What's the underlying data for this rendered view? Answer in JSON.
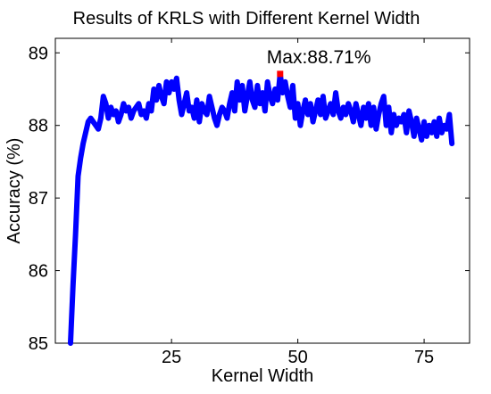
{
  "chart_data": {
    "type": "line",
    "title": "Results of KRLS with Different Kernel Width",
    "xlabel": "Kernel Width",
    "ylabel": "Accuracy (%)",
    "xlim": [
      2,
      84
    ],
    "ylim": [
      85,
      89.2
    ],
    "xticks": [
      25,
      50,
      75
    ],
    "xtick_labels": [
      "25",
      "50",
      "75"
    ],
    "yticks": [
      85,
      86,
      87,
      88,
      89
    ],
    "ytick_labels": [
      "85",
      "86",
      "87",
      "88",
      "89"
    ],
    "grid": false,
    "series_color": "#0000ff",
    "annotation": {
      "text": "Max:88.71%",
      "x": 46.5,
      "y": 88.71,
      "marker_color": "#ff0000"
    },
    "series": [
      {
        "x": [
          5,
          5.5,
          6,
          6.5,
          7,
          7.5,
          8,
          8.5,
          9,
          9.5,
          10,
          10.5,
          11,
          11.5,
          12,
          12.5,
          13,
          13.5,
          14,
          14.5,
          15,
          15.5,
          16,
          16.5,
          17,
          17.5,
          18,
          18.5,
          19,
          19.5,
          20,
          20.5,
          21,
          21.5,
          22,
          22.5,
          23,
          23.5,
          24,
          24.5,
          25,
          25.5,
          26,
          26.5,
          27,
          27.5,
          28,
          28.5,
          29,
          29.5,
          30,
          30.5,
          31,
          31.5,
          32,
          32.5,
          33,
          33.5,
          34,
          34.5,
          35,
          35.5,
          36,
          36.5,
          37,
          37.5,
          38,
          38.5,
          39,
          39.5,
          40,
          40.5,
          41,
          41.5,
          42,
          42.5,
          43,
          43.5,
          44,
          44.5,
          45,
          45.5,
          46,
          46.5,
          47,
          47.5,
          48,
          48.5,
          49,
          49.5,
          50,
          50.5,
          51,
          51.5,
          52,
          52.5,
          53,
          53.5,
          54,
          54.5,
          55,
          55.5,
          56,
          56.5,
          57,
          57.5,
          58,
          58.5,
          59,
          59.5,
          60,
          60.5,
          61,
          61.5,
          62,
          62.5,
          63,
          63.5,
          64,
          64.5,
          65,
          65.5,
          66,
          66.5,
          67,
          67.5,
          68,
          68.5,
          69,
          69.5,
          70,
          70.5,
          71,
          71.5,
          72,
          72.5,
          73,
          73.5,
          74,
          74.5,
          75,
          75.5,
          76,
          76.5,
          77,
          77.5,
          78,
          78.5,
          79,
          79.5,
          80,
          80.5
        ],
        "values": [
          85.0,
          85.8,
          86.5,
          87.3,
          87.55,
          87.75,
          87.9,
          88.05,
          88.1,
          88.05,
          88.0,
          87.95,
          88.1,
          88.4,
          88.3,
          88.1,
          88.25,
          88.15,
          88.2,
          88.05,
          88.15,
          88.3,
          88.2,
          88.25,
          88.1,
          88.2,
          88.25,
          88.3,
          88.15,
          88.2,
          88.1,
          88.3,
          88.2,
          88.5,
          88.35,
          88.55,
          88.4,
          88.3,
          88.6,
          88.45,
          88.6,
          88.5,
          88.65,
          88.35,
          88.15,
          88.3,
          88.45,
          88.2,
          88.25,
          88.1,
          88.35,
          88.05,
          88.3,
          88.2,
          88.15,
          88.4,
          88.25,
          88.1,
          88.0,
          88.15,
          88.25,
          88.2,
          88.1,
          88.3,
          88.45,
          88.2,
          88.6,
          88.35,
          88.55,
          88.2,
          88.4,
          88.6,
          88.35,
          88.25,
          88.55,
          88.3,
          88.45,
          88.2,
          88.6,
          88.4,
          88.3,
          88.5,
          88.35,
          88.71,
          88.45,
          88.6,
          88.4,
          88.25,
          88.55,
          88.1,
          88.3,
          88.0,
          88.2,
          88.35,
          88.15,
          88.3,
          88.05,
          88.2,
          88.35,
          88.15,
          88.4,
          88.1,
          88.2,
          88.3,
          88.15,
          88.45,
          88.2,
          88.1,
          88.25,
          88.15,
          88.3,
          88.2,
          88.05,
          88.3,
          88.15,
          88.0,
          88.25,
          88.1,
          88.3,
          88.0,
          88.25,
          87.95,
          88.15,
          88.3,
          88.4,
          88.0,
          88.25,
          87.9,
          88.15,
          88.0,
          88.1,
          88.05,
          88.15,
          87.9,
          88.2,
          88.05,
          87.85,
          88.1,
          87.95,
          87.8,
          88.05,
          87.85,
          88.0,
          87.9,
          88.05,
          87.85,
          88.1,
          87.9,
          88.0,
          87.95,
          88.15,
          87.75
        ]
      }
    ]
  }
}
